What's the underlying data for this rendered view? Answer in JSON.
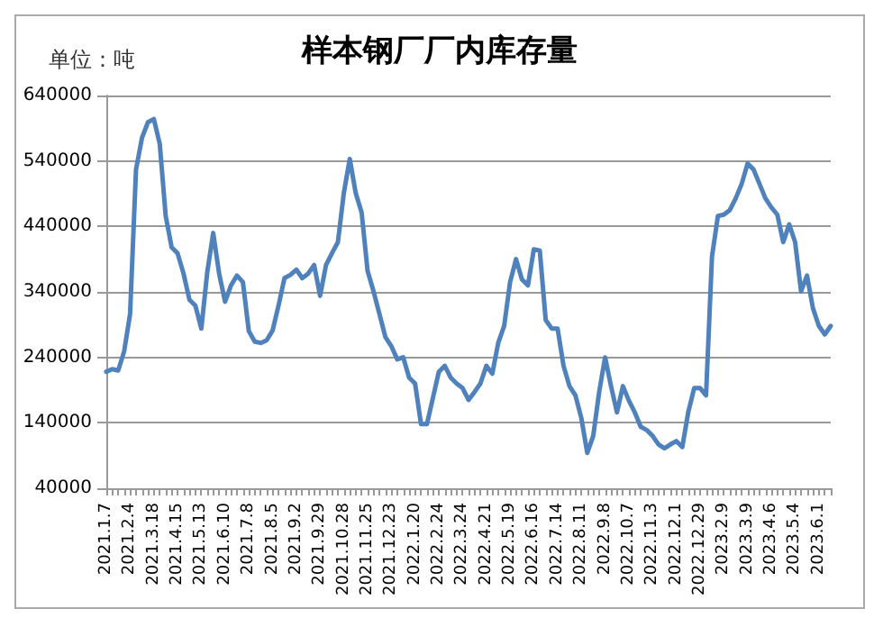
{
  "chart_data": {
    "type": "line",
    "title": "样本钢厂厂内库存量",
    "annotations": [
      "单位：吨"
    ],
    "categories": [
      "2021.1.7",
      null,
      null,
      null,
      "2021.2.4",
      null,
      null,
      null,
      "2021.3.18",
      null,
      null,
      null,
      "2021.4.15",
      null,
      null,
      null,
      "2021.5.13",
      null,
      null,
      null,
      "2021.6.10",
      null,
      null,
      null,
      "2021.7.8",
      null,
      null,
      null,
      "2021.8.5",
      null,
      null,
      null,
      "2021.9.2",
      null,
      null,
      null,
      "2021.9.29",
      null,
      null,
      null,
      "2021.10.28",
      null,
      null,
      null,
      "2021.11.25",
      null,
      null,
      null,
      "2021.12.23",
      null,
      null,
      null,
      "2022.1.20",
      null,
      null,
      null,
      "2022.2.24",
      null,
      null,
      null,
      "2022.3.24",
      null,
      null,
      null,
      "2022.4.21",
      null,
      null,
      null,
      "2022.5.19",
      null,
      null,
      null,
      "2022.6.16",
      null,
      null,
      null,
      "2022.7.14",
      null,
      null,
      null,
      "2022.8.11",
      null,
      null,
      null,
      "2022.9.8",
      null,
      null,
      null,
      "2022.10.7",
      null,
      null,
      null,
      "2022.11.3",
      null,
      null,
      null,
      "2022.12.1",
      null,
      null,
      null,
      "2022.12.29",
      null,
      null,
      null,
      "2023.2.9",
      null,
      null,
      null,
      "2023.3.9",
      null,
      null,
      null,
      "2023.4.6",
      null,
      null,
      null,
      "2023.5.4",
      null,
      null,
      null,
      "2023.6.1",
      null,
      null
    ],
    "series": [
      {
        "color": "#4f81bd",
        "values": [
          218000,
          222000,
          220000,
          249000,
          306000,
          527000,
          575000,
          599000,
          604000,
          566000,
          456000,
          408000,
          399000,
          368000,
          328000,
          319000,
          284000,
          370000,
          430000,
          368000,
          325000,
          350000,
          365000,
          355000,
          280000,
          264000,
          262000,
          266000,
          281000,
          319000,
          361000,
          366000,
          374000,
          361000,
          368000,
          381000,
          334000,
          381000,
          399000,
          416000,
          491000,
          543000,
          491000,
          461000,
          372000,
          341000,
          306000,
          271000,
          257000,
          237000,
          240000,
          209000,
          200000,
          138000,
          138000,
          178000,
          218000,
          227000,
          209000,
          200000,
          193000,
          175000,
          187000,
          200000,
          227000,
          215000,
          262000,
          288000,
          355000,
          390000,
          359000,
          350000,
          405000,
          403000,
          297000,
          284000,
          284000,
          227000,
          196000,
          182000,
          147000,
          94000,
          120000,
          187000,
          240000,
          196000,
          156000,
          196000,
          174000,
          156000,
          134000,
          129000,
          120000,
          107000,
          101000,
          107000,
          112000,
          103000,
          156000,
          193000,
          193000,
          182000,
          394000,
          456000,
          458000,
          465000,
          483000,
          505000,
          536000,
          527000,
          505000,
          483000,
          469000,
          458000,
          416000,
          443000,
          416000,
          341000,
          365000,
          315000,
          288000,
          275000,
          288000
        ]
      }
    ],
    "ylim": [
      40000,
      640000
    ],
    "yticks": [
      40000,
      140000,
      240000,
      340000,
      440000,
      540000,
      640000
    ],
    "grid": "y",
    "marker": "none",
    "line_style": "solid"
  }
}
